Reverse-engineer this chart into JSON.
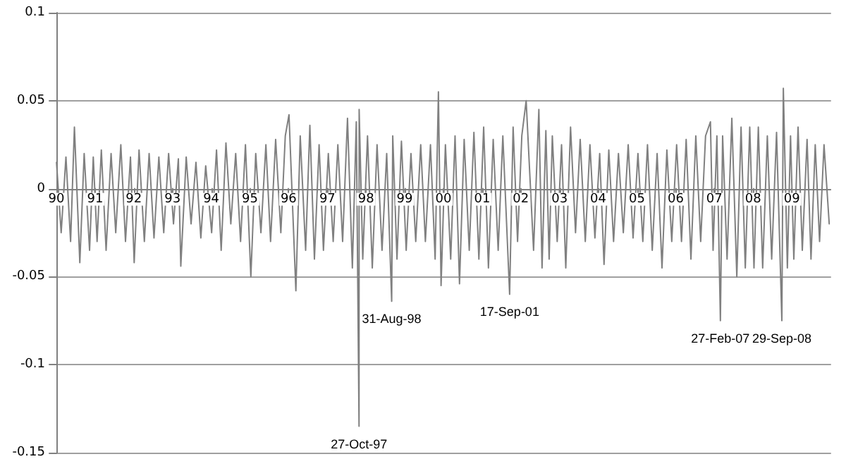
{
  "chart_data": {
    "type": "line",
    "x": [
      "1990-01-02",
      "1990-02-15",
      "1990-04-01",
      "1990-05-15",
      "1990-06-20",
      "1990-08-10",
      "1990-09-20",
      "1990-11-10",
      "1990-12-15",
      "1991-01-20",
      "1991-03-01",
      "1991-04-15",
      "1991-06-01",
      "1991-07-15",
      "1991-09-01",
      "1991-10-15",
      "1991-12-01",
      "1992-01-05",
      "1992-02-20",
      "1992-04-10",
      "1992-05-25",
      "1992-07-10",
      "1992-08-25",
      "1992-10-10",
      "1992-11-25",
      "1993-01-10",
      "1993-02-25",
      "1993-03-20",
      "1993-05-10",
      "1993-06-25",
      "1993-08-10",
      "1993-09-25",
      "1993-11-10",
      "1994-01-05",
      "1994-02-20",
      "1994-04-05",
      "1994-05-20",
      "1994-07-05",
      "1994-08-20",
      "1994-10-05",
      "1994-11-20",
      "1995-01-10",
      "1995-02-25",
      "1995-04-15",
      "1995-06-01",
      "1995-07-15",
      "1995-09-01",
      "1995-10-20",
      "1995-12-01",
      "1996-01-05",
      "1996-03-10",
      "1996-04-20",
      "1996-06-10",
      "1996-07-20",
      "1996-09-01",
      "1996-10-15",
      "1996-11-25",
      "1997-01-10",
      "1997-02-25",
      "1997-04-10",
      "1997-05-25",
      "1997-07-10",
      "1997-08-25",
      "1997-10-01",
      "1997-10-27",
      "1997-10-28",
      "1997-12-01",
      "1998-01-15",
      "1998-03-01",
      "1998-04-15",
      "1998-06-01",
      "1998-07-15",
      "1998-08-31",
      "1998-09-10",
      "1998-10-20",
      "1998-12-01",
      "1999-01-15",
      "1999-03-01",
      "1999-04-15",
      "1999-06-01",
      "1999-07-15",
      "1999-09-01",
      "1999-10-15",
      "1999-11-15",
      "1999-12-10",
      "2000-01-20",
      "2000-03-10",
      "2000-04-20",
      "2000-06-01",
      "2000-07-15",
      "2000-09-01",
      "2000-10-15",
      "2000-12-01",
      "2001-01-15",
      "2001-03-01",
      "2001-04-15",
      "2001-06-01",
      "2001-07-15",
      "2001-09-17",
      "2001-10-20",
      "2001-12-01",
      "2002-01-10",
      "2002-02-20",
      "2002-05-01",
      "2002-06-20",
      "2002-07-20",
      "2002-08-25",
      "2002-09-25",
      "2002-10-25",
      "2002-12-10",
      "2003-01-20",
      "2003-03-01",
      "2003-04-15",
      "2003-06-01",
      "2003-07-15",
      "2003-09-01",
      "2003-10-15",
      "2003-12-01",
      "2004-01-15",
      "2004-02-25",
      "2004-04-10",
      "2004-05-25",
      "2004-07-10",
      "2004-08-25",
      "2004-10-10",
      "2004-11-25",
      "2005-01-10",
      "2005-02-25",
      "2005-04-10",
      "2005-05-25",
      "2005-07-10",
      "2005-08-25",
      "2005-10-10",
      "2005-11-25",
      "2006-01-10",
      "2006-02-25",
      "2006-04-10",
      "2006-05-25",
      "2006-07-10",
      "2006-08-25",
      "2006-10-10",
      "2006-11-25",
      "2006-12-20",
      "2007-01-25",
      "2007-02-27",
      "2007-03-20",
      "2007-05-01",
      "2007-06-15",
      "2007-08-01",
      "2007-09-10",
      "2007-10-20",
      "2007-12-01",
      "2008-01-10",
      "2008-02-20",
      "2008-04-01",
      "2008-05-15",
      "2008-06-25",
      "2008-08-10",
      "2008-09-29",
      "2008-10-13",
      "2008-11-20",
      "2008-12-20",
      "2009-01-20",
      "2009-03-01",
      "2009-04-10",
      "2009-05-25",
      "2009-07-01",
      "2009-08-10",
      "2009-09-20",
      "2009-11-01",
      "2009-12-20"
    ],
    "series": [
      {
        "color": "#808080",
        "values": [
          0.015,
          -0.025,
          0.018,
          -0.03,
          0.035,
          -0.042,
          0.02,
          -0.035,
          0.018,
          -0.03,
          0.022,
          -0.035,
          0.02,
          -0.025,
          0.025,
          -0.03,
          0.018,
          -0.042,
          0.022,
          -0.03,
          0.02,
          -0.028,
          0.018,
          -0.025,
          0.02,
          -0.02,
          0.017,
          -0.044,
          0.018,
          -0.02,
          0.015,
          -0.028,
          0.013,
          -0.025,
          0.022,
          -0.035,
          0.026,
          -0.02,
          0.02,
          -0.03,
          0.025,
          -0.05,
          0.02,
          -0.025,
          0.025,
          -0.03,
          0.028,
          -0.025,
          0.03,
          0.042,
          -0.058,
          0.03,
          -0.035,
          0.036,
          -0.04,
          0.025,
          -0.035,
          0.02,
          -0.03,
          0.025,
          -0.03,
          0.04,
          -0.045,
          0.038,
          -0.135,
          0.045,
          -0.04,
          0.03,
          -0.045,
          0.025,
          -0.035,
          0.02,
          -0.064,
          0.03,
          -0.04,
          0.027,
          -0.035,
          0.02,
          -0.03,
          0.025,
          -0.03,
          0.025,
          -0.04,
          0.055,
          -0.055,
          0.025,
          -0.04,
          0.03,
          -0.054,
          0.028,
          -0.035,
          0.032,
          -0.04,
          0.035,
          -0.045,
          0.028,
          -0.035,
          0.03,
          -0.06,
          0.035,
          -0.03,
          0.03,
          0.05,
          -0.035,
          0.045,
          -0.045,
          0.033,
          -0.04,
          0.03,
          -0.03,
          0.025,
          -0.045,
          0.035,
          -0.025,
          0.028,
          -0.03,
          0.025,
          -0.028,
          0.02,
          -0.043,
          0.022,
          -0.03,
          0.02,
          -0.025,
          0.025,
          -0.028,
          0.02,
          -0.03,
          0.025,
          -0.035,
          0.02,
          -0.045,
          0.022,
          -0.03,
          0.025,
          -0.03,
          0.028,
          -0.04,
          0.03,
          -0.03,
          0.03,
          0.038,
          -0.035,
          0.03,
          -0.075,
          0.03,
          -0.04,
          0.04,
          -0.05,
          0.035,
          -0.045,
          0.035,
          -0.045,
          0.035,
          -0.045,
          0.03,
          -0.04,
          0.032,
          -0.075,
          0.057,
          -0.045,
          0.03,
          -0.04,
          0.035,
          -0.035,
          0.028,
          -0.04,
          0.025,
          -0.03,
          0.025,
          -0.02
        ]
      }
    ],
    "xlim": [
      "1990-01-01",
      "2010-01-01"
    ],
    "xticks": [
      {
        "value": "1990-01-01",
        "label": "90"
      },
      {
        "value": "1991-01-01",
        "label": "91"
      },
      {
        "value": "1992-01-01",
        "label": "92"
      },
      {
        "value": "1993-01-01",
        "label": "93"
      },
      {
        "value": "1994-01-01",
        "label": "94"
      },
      {
        "value": "1995-01-01",
        "label": "95"
      },
      {
        "value": "1996-01-01",
        "label": "96"
      },
      {
        "value": "1997-01-01",
        "label": "97"
      },
      {
        "value": "1998-01-01",
        "label": "98"
      },
      {
        "value": "1999-01-01",
        "label": "99"
      },
      {
        "value": "2000-01-01",
        "label": "00"
      },
      {
        "value": "2001-01-01",
        "label": "01"
      },
      {
        "value": "2002-01-01",
        "label": "02"
      },
      {
        "value": "2003-01-01",
        "label": "03"
      },
      {
        "value": "2004-01-01",
        "label": "04"
      },
      {
        "value": "2005-01-01",
        "label": "05"
      },
      {
        "value": "2006-01-01",
        "label": "06"
      },
      {
        "value": "2007-01-01",
        "label": "07"
      },
      {
        "value": "2008-01-01",
        "label": "08"
      },
      {
        "value": "2009-01-01",
        "label": "09"
      }
    ],
    "ylim": [
      -0.15,
      0.1
    ],
    "yticks": [
      -0.15,
      -0.1,
      -0.05,
      0,
      0.05,
      0.1
    ],
    "grid": "y",
    "marker": "none",
    "line_style": "solid",
    "annotations": [
      {
        "text": "27-Oct-97",
        "x": "1997-10-27",
        "y": -0.135
      },
      {
        "text": "31-Aug-98",
        "x": "1998-08-31",
        "y": -0.064
      },
      {
        "text": "17-Sep-01",
        "x": "2001-09-17",
        "y": -0.06
      },
      {
        "text": "27-Feb-07",
        "x": "2007-02-27",
        "y": -0.075
      },
      {
        "text": "29-Sep-08",
        "x": "2008-09-29",
        "y": -0.075
      }
    ]
  }
}
